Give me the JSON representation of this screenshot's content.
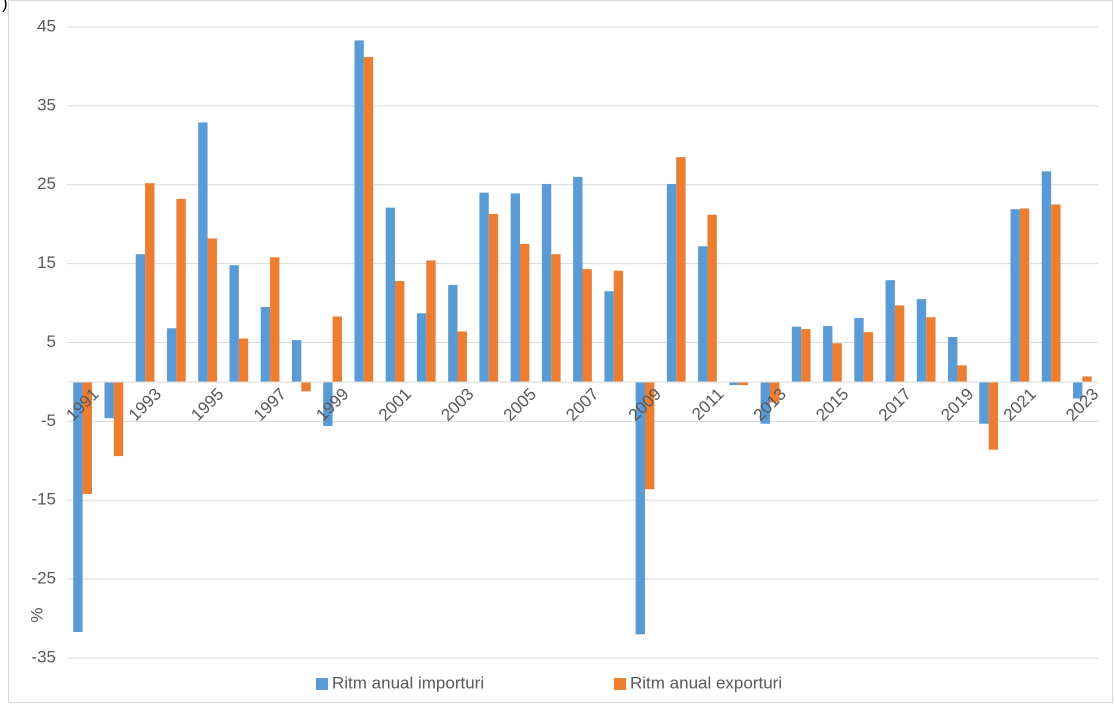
{
  "chart_data": {
    "type": "bar",
    "note": ")",
    "y_label": "%",
    "categories": [
      "1991",
      null,
      "1993",
      null,
      "1995",
      null,
      "1997",
      null,
      "1999",
      null,
      "2001",
      null,
      "2003",
      null,
      "2005",
      null,
      "2007",
      null,
      "2009",
      null,
      "2011",
      null,
      "2013",
      null,
      "2015",
      null,
      "2017",
      null,
      "2019",
      null,
      "2021",
      null,
      "2023"
    ],
    "series": [
      {
        "name": "Ritm anual importuri",
        "color": "#5b9bd5",
        "values": [
          -31.7,
          -4.6,
          16.2,
          6.8,
          32.9,
          14.8,
          9.5,
          5.3,
          -5.6,
          43.3,
          22.1,
          8.7,
          12.3,
          24.0,
          23.9,
          25.1,
          26.0,
          11.5,
          -32.0,
          25.1,
          17.2,
          -0.4,
          -5.3,
          7.0,
          7.1,
          8.1,
          12.9,
          10.5,
          5.7,
          -5.3,
          21.9,
          26.7,
          -2.1
        ]
      },
      {
        "name": "Ritm anual exporturi",
        "color": "#ed7d31",
        "values": [
          -14.2,
          -9.4,
          25.2,
          23.2,
          18.2,
          5.5,
          15.8,
          -1.2,
          8.3,
          41.2,
          12.8,
          15.4,
          6.4,
          21.3,
          17.5,
          16.2,
          14.3,
          14.1,
          -13.6,
          28.5,
          21.2,
          -0.4,
          -2.6,
          6.7,
          4.9,
          6.3,
          9.7,
          8.2,
          2.1,
          -8.6,
          22.0,
          22.5,
          0.7
        ]
      }
    ],
    "ylim": [
      -35,
      45
    ],
    "yticks": [
      -35,
      -25,
      -15,
      -5,
      5,
      15,
      25,
      35,
      45
    ],
    "grid": true,
    "legend": "bottom"
  }
}
